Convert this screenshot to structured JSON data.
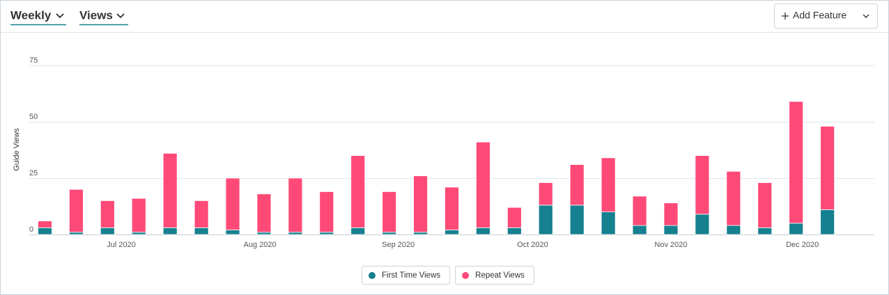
{
  "header": {
    "period": "Weekly",
    "metric": "Views",
    "button": "Add Feature"
  },
  "chart_data": {
    "type": "stacked-bar",
    "y_label": "Guide Views",
    "xlim": [
      -0.5,
      26.5
    ],
    "xticks": [
      {
        "value": 2.44,
        "label": "Jul 2020"
      },
      {
        "value": 6.87,
        "label": "Aug 2020"
      },
      {
        "value": 11.29,
        "label": "Sep 2020"
      },
      {
        "value": 15.58,
        "label": "Oct 2020"
      },
      {
        "value": 20,
        "label": "Nov 2020"
      },
      {
        "value": 24.2,
        "label": "Dec 2020"
      }
    ],
    "ylim": [
      0,
      75
    ],
    "yticks": [
      0,
      25,
      50,
      75
    ],
    "grid": true,
    "series": [
      {
        "name": "First Time Views",
        "color": "#15808f",
        "values": [
          3,
          1,
          3,
          1,
          3,
          3,
          2,
          1,
          1,
          1,
          3,
          1,
          1,
          2,
          3,
          3,
          13,
          13,
          10,
          4,
          4,
          9,
          4,
          3,
          5,
          11
        ]
      },
      {
        "name": "Repeat Views",
        "color": "#ff4a78",
        "values": [
          3,
          19,
          12,
          15,
          33,
          12,
          23,
          17,
          24,
          18,
          32,
          18,
          25,
          19,
          38,
          9,
          10,
          18,
          24,
          13,
          10,
          26,
          24,
          20,
          54,
          37
        ]
      }
    ]
  }
}
